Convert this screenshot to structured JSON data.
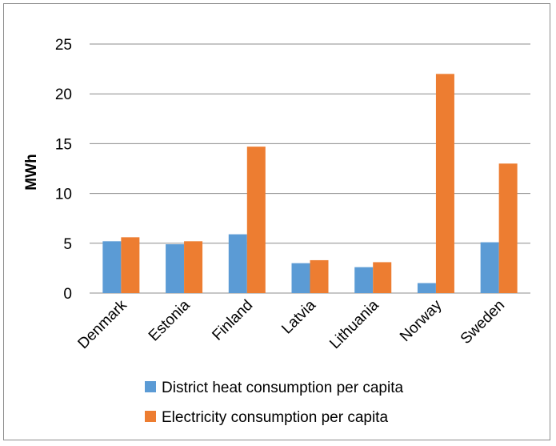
{
  "chart_data": {
    "type": "bar",
    "title": "",
    "xlabel": "",
    "ylabel": "MWh",
    "ylim": [
      0,
      25
    ],
    "yticks": [
      0,
      5,
      10,
      15,
      20,
      25
    ],
    "grid": true,
    "legend_position": "bottom",
    "categories": [
      "Denmark",
      "Estonia",
      "Finland",
      "Latvia",
      "Lithuania",
      "Norway",
      "Sweden"
    ],
    "series": [
      {
        "name": "District heat consumption per capita",
        "color": "#5B9BD5",
        "values": [
          5.2,
          4.9,
          5.9,
          3.0,
          2.6,
          1.0,
          5.1
        ]
      },
      {
        "name": "Electricity consumption per capita",
        "color": "#ED7D31",
        "values": [
          5.6,
          5.2,
          14.7,
          3.3,
          3.1,
          22.0,
          13.0
        ]
      }
    ]
  }
}
